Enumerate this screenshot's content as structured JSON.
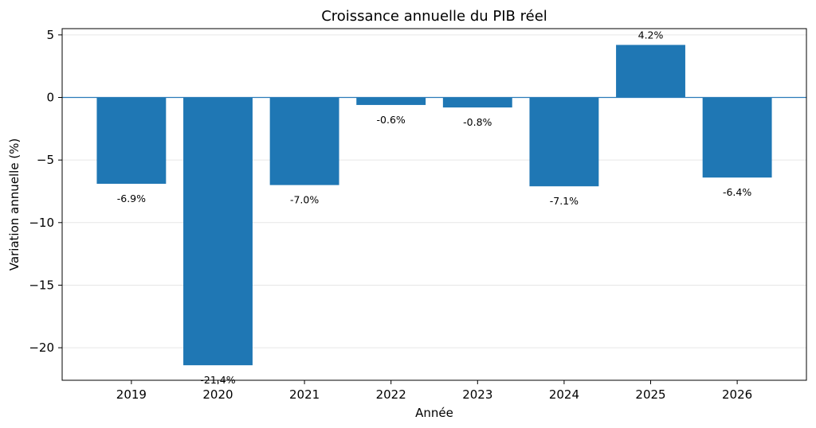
{
  "chart_data": {
    "type": "bar",
    "title": "Croissance annuelle du PIB réel",
    "xlabel": "Année",
    "ylabel": "Variation annuelle (%)",
    "categories": [
      "2019",
      "2020",
      "2021",
      "2022",
      "2023",
      "2024",
      "2025",
      "2026"
    ],
    "values": [
      -6.9,
      -21.4,
      -7.0,
      -0.6,
      -0.8,
      -7.1,
      4.2,
      -6.4
    ],
    "data_labels": [
      "-6.9%",
      "-21.4%",
      "-7.0%",
      "-0.6%",
      "-0.8%",
      "-7.1%",
      "4.2%",
      "-6.4%"
    ],
    "ylim": [
      -22.6,
      5.5
    ],
    "yticks": [
      5,
      0,
      -5,
      -10,
      -15,
      -20
    ],
    "ytick_labels": [
      "5",
      "0",
      "−5",
      "−10",
      "−15",
      "−20"
    ],
    "bar_color": "#1f77b4",
    "zero_line_color": "#2b7bb9",
    "grid": true
  }
}
